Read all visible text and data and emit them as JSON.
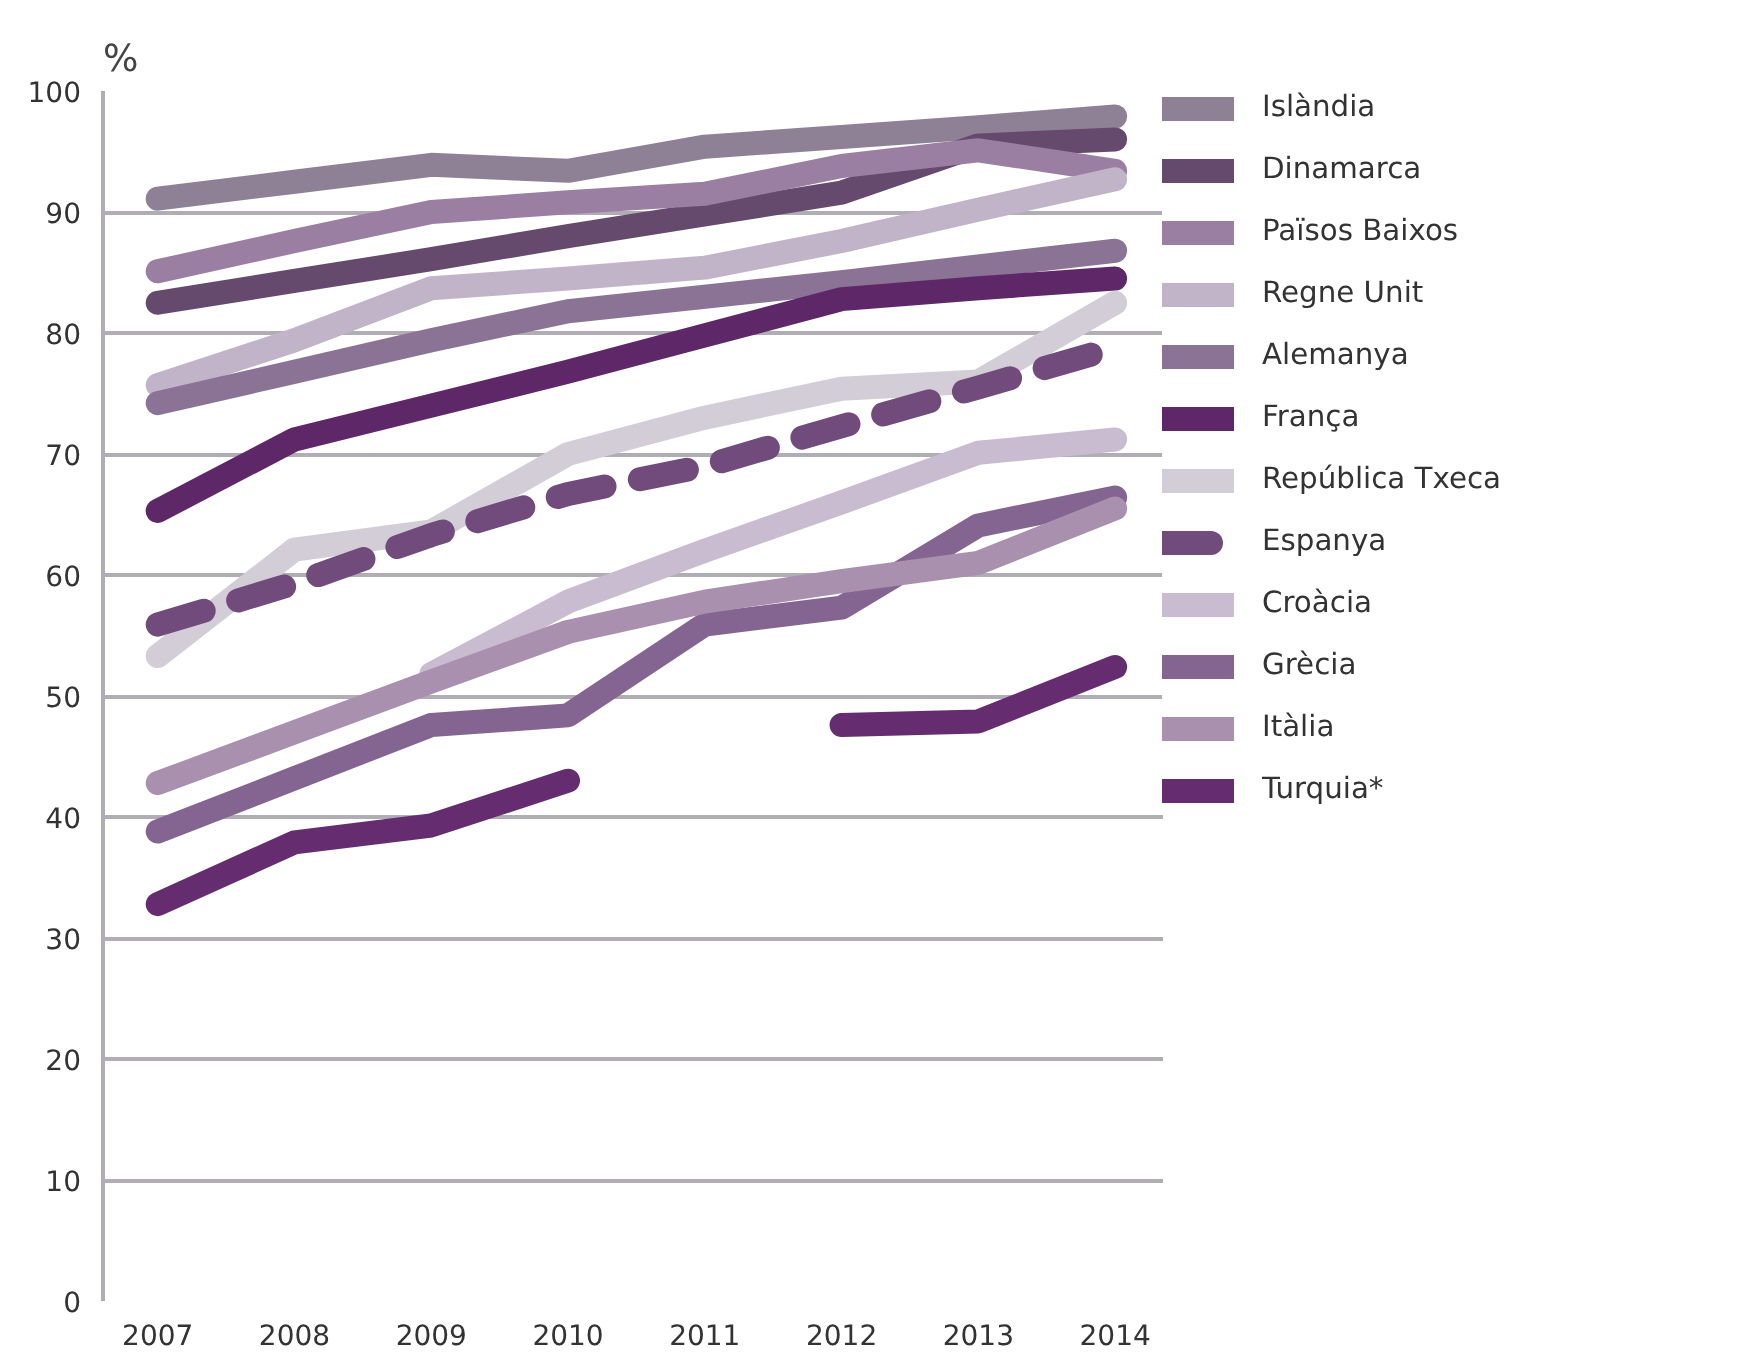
{
  "chart_data": {
    "type": "line",
    "ylabel": "%",
    "categories": [
      "2007",
      "2008",
      "2009",
      "2010",
      "2011",
      "2012",
      "2013",
      "2014"
    ],
    "ylim": [
      0,
      100
    ],
    "yticks": [
      0,
      10,
      20,
      30,
      40,
      50,
      60,
      70,
      80,
      90,
      100
    ],
    "grid": "y",
    "legend": "right",
    "marker": "none",
    "line_style": "solid",
    "series": [
      {
        "name": "Islàndia",
        "color": "#8e8196",
        "values": [
          91.1,
          92.5,
          93.9,
          93.4,
          95.4,
          96.2,
          97.0,
          97.9
        ]
      },
      {
        "name": "Dinamarca",
        "color": "#654a6e",
        "values": [
          82.5,
          84.3,
          86.1,
          88.0,
          89.8,
          91.6,
          95.5,
          96.0
        ]
      },
      {
        "name": "Països Baixos",
        "color": "#9a7fa2",
        "values": [
          85.1,
          87.6,
          90.0,
          90.8,
          91.5,
          93.8,
          95.1,
          93.4
        ]
      },
      {
        "name": "Regne Unit",
        "color": "#c2b4c8",
        "values": [
          75.7,
          79.4,
          83.7,
          84.5,
          85.4,
          87.6,
          90.2,
          92.7
        ]
      },
      {
        "name": "Alemanya",
        "color": "#8a7394",
        "values": [
          74.2,
          76.8,
          79.4,
          81.8,
          83.0,
          84.2,
          85.5,
          86.8
        ]
      },
      {
        "name": "França",
        "color": "#5e2868",
        "values": [
          65.3,
          71.2,
          74.0,
          76.8,
          79.8,
          82.8,
          83.7,
          84.5
        ]
      },
      {
        "name": "República Txeca",
        "color": "#d3cdd8",
        "values": [
          53.3,
          62.1,
          63.6,
          70.0,
          73.0,
          75.4,
          76.0,
          82.5
        ]
      },
      {
        "name": "Espanya",
        "color": "#704b7b",
        "line_style": "dashed",
        "values": [
          55.9,
          59.3,
          63.3,
          66.7,
          69.0,
          72.3,
          75.5,
          78.8
        ]
      },
      {
        "name": "Croàcia",
        "color": "#cabcd0",
        "values": [
          null,
          null,
          51.8,
          57.8,
          62.0,
          66.0,
          70.1,
          71.2
        ]
      },
      {
        "name": "Grècia",
        "color": "#846490",
        "values": [
          38.8,
          43.2,
          47.6,
          48.4,
          55.9,
          57.3,
          64.1,
          66.4
        ]
      },
      {
        "name": "Itàlia",
        "color": "#a890ae",
        "values": [
          42.8,
          47.0,
          51.2,
          55.3,
          57.8,
          59.5,
          61.0,
          65.5
        ]
      },
      {
        "name": "Turquia*",
        "color": "#652d70",
        "values": [
          32.8,
          37.9,
          39.3,
          43.0,
          null,
          47.6,
          47.9,
          52.4
        ]
      }
    ]
  }
}
